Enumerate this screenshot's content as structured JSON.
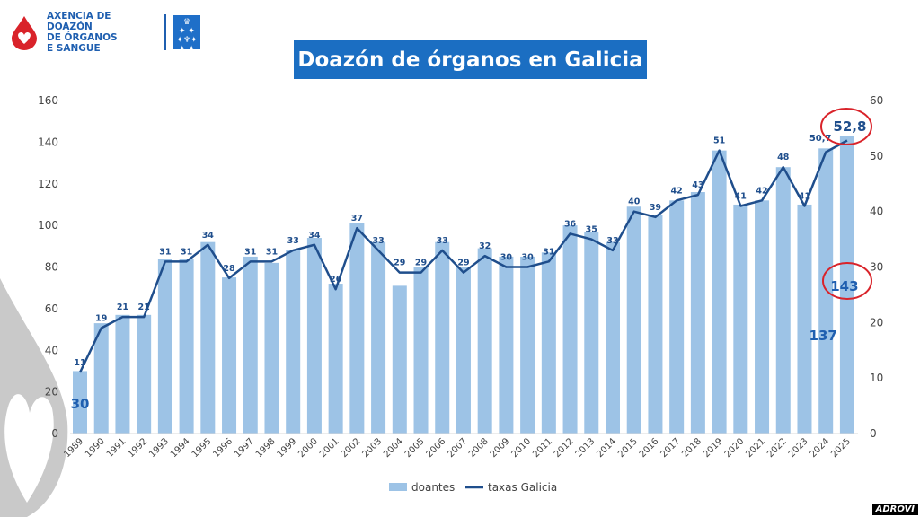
{
  "header": {
    "org_name": "AXENCIA DE DOAZÓN DE ÓRGANOS E SANGUE",
    "org_lines": [
      "AXENCIA DE DOAZÓN",
      "DE ÓRGANOS",
      "E SANGUE"
    ],
    "watermark": "ADROVI"
  },
  "colors": {
    "bar": "#9dc3e6",
    "line": "#1f4e8c",
    "title_bg": "#1b6ec2",
    "highlight": "#d9232a",
    "label": "#1f4e8c"
  },
  "chart_data": {
    "type": "bar+line",
    "title": "Doazón de órganos en Galicia",
    "categories": [
      "1989",
      "1990",
      "1991",
      "1992",
      "1993",
      "1994",
      "1995",
      "1996",
      "1997",
      "1998",
      "1999",
      "2000",
      "2001",
      "2002",
      "2003",
      "2004",
      "2005",
      "2006",
      "2007",
      "2008",
      "2009",
      "2010",
      "2011",
      "2012",
      "2013",
      "2014",
      "2015",
      "2016",
      "2017",
      "2018",
      "2019",
      "2020",
      "2021",
      "2022",
      "2023",
      "2024",
      "2025"
    ],
    "series": [
      {
        "name": "doantes",
        "type": "bar",
        "axis": "left",
        "values": [
          30,
          53,
          57,
          57,
          84,
          84,
          92,
          75,
          85,
          82,
          88,
          94,
          72,
          101,
          92,
          71,
          80,
          92,
          80,
          89,
          85,
          85,
          87,
          100,
          97,
          92,
          109,
          105,
          112,
          116,
          136,
          110,
          112,
          128,
          110,
          137,
          143
        ]
      },
      {
        "name": "taxas Galicia",
        "type": "line",
        "axis": "right",
        "values": [
          11,
          19,
          21,
          21,
          31,
          31,
          34,
          28,
          31,
          31,
          33,
          34,
          26,
          37,
          33,
          29,
          29,
          33,
          29,
          32,
          30,
          30,
          31,
          36,
          35,
          33,
          40,
          39,
          42,
          43,
          51,
          41,
          42,
          48,
          41,
          50.7,
          52.8
        ],
        "labels": [
          "11",
          "19",
          "21",
          "21",
          "31",
          "31",
          "34",
          "28",
          "31",
          "31",
          "33",
          "34",
          "26",
          "37",
          "33",
          "29",
          "29",
          "33",
          "29",
          "32",
          "30",
          "30",
          "31",
          "36",
          "35",
          "33",
          "40",
          "39",
          "42",
          "43",
          "51",
          "41",
          "42",
          "48",
          "41",
          "50,7",
          "52,8"
        ]
      }
    ],
    "bar_value_labels": [
      {
        "index": 0,
        "text": "30"
      },
      {
        "index": 35,
        "text": "137"
      },
      {
        "index": 36,
        "text": "143"
      }
    ],
    "highlighted": [
      "52,8",
      "143"
    ],
    "y_left": {
      "range": [
        0,
        160
      ],
      "ticks": [
        "0",
        "20",
        "40",
        "60",
        "80",
        "100",
        "120",
        "140",
        "160"
      ]
    },
    "y_right": {
      "range": [
        0,
        60
      ],
      "ticks": [
        "0",
        "10",
        "20",
        "30",
        "40",
        "50",
        "60"
      ]
    },
    "legend": {
      "position": "bottom",
      "items": [
        "doantes",
        "taxas Galicia"
      ]
    }
  }
}
